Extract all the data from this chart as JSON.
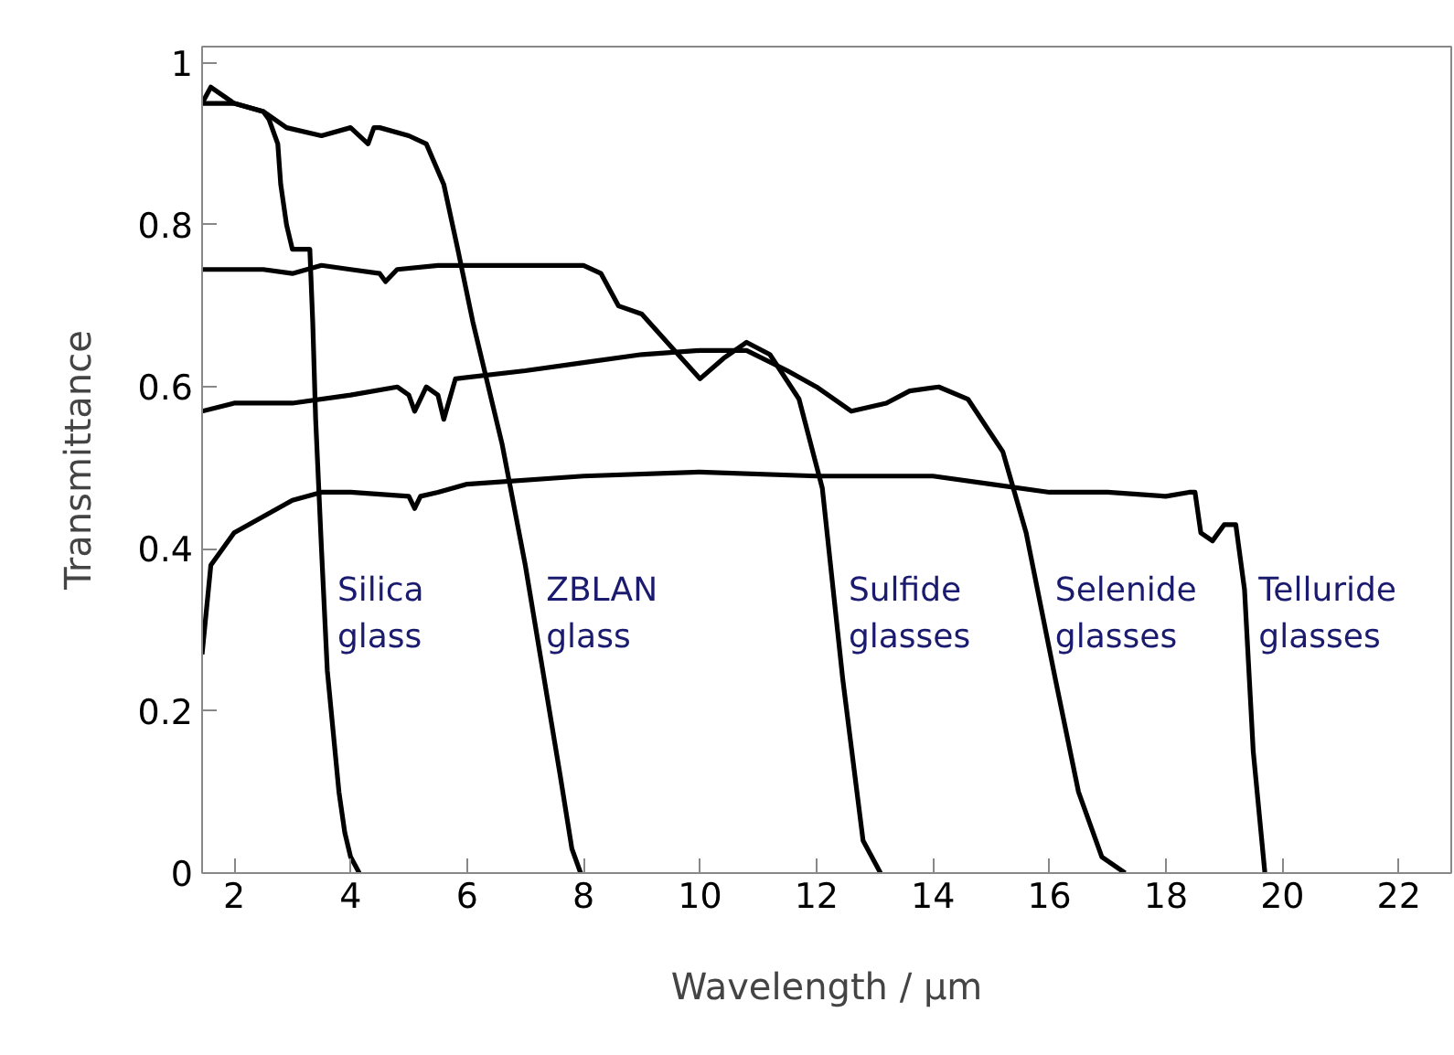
{
  "chart_data": {
    "type": "line",
    "xlabel": "Wavelength / µm",
    "ylabel": "Transmittance",
    "xlim": [
      1.45,
      22.9
    ],
    "ylim": [
      0,
      1.02
    ],
    "xticks": [
      2,
      4,
      6,
      8,
      10,
      12,
      14,
      16,
      18,
      20,
      22
    ],
    "yticks": [
      0,
      0.2,
      0.4,
      0.6,
      0.8,
      1
    ],
    "grid": false,
    "legend": false,
    "marker": "none",
    "line_style": "solid",
    "series": [
      {
        "name": "Silica\nglass",
        "color": "#000000",
        "x": [
          1.45,
          1.6,
          2.0,
          2.5,
          2.6,
          2.75,
          2.8,
          2.9,
          3.0,
          3.3,
          3.35,
          3.4,
          3.5,
          3.6,
          3.8,
          3.9,
          4.0,
          4.15
        ],
        "values": [
          0.95,
          0.97,
          0.95,
          0.94,
          0.93,
          0.9,
          0.85,
          0.8,
          0.77,
          0.77,
          0.68,
          0.56,
          0.4,
          0.25,
          0.1,
          0.05,
          0.02,
          0.0
        ]
      },
      {
        "name": "ZBLAN\nglass",
        "color": "#000000",
        "x": [
          1.45,
          2.0,
          2.5,
          2.9,
          3.5,
          4.0,
          4.3,
          4.4,
          4.5,
          5.0,
          5.3,
          5.6,
          5.84,
          6.1,
          6.6,
          7.0,
          7.3,
          7.6,
          7.8,
          7.95
        ],
        "values": [
          0.95,
          0.95,
          0.94,
          0.92,
          0.91,
          0.92,
          0.9,
          0.92,
          0.92,
          0.91,
          0.9,
          0.85,
          0.77,
          0.68,
          0.53,
          0.38,
          0.25,
          0.12,
          0.03,
          0.0
        ]
      },
      {
        "name": "Sulfide\nglasses",
        "color": "#000000",
        "x": [
          1.45,
          2.5,
          3.0,
          3.5,
          4.0,
          4.5,
          4.6,
          4.8,
          5.5,
          6.0,
          7.0,
          8.0,
          8.3,
          8.6,
          9.0,
          9.5,
          10.0,
          10.4,
          10.8,
          11.2,
          11.7,
          12.1,
          12.45,
          12.8,
          13.1
        ],
        "values": [
          0.745,
          0.745,
          0.74,
          0.75,
          0.745,
          0.74,
          0.73,
          0.745,
          0.75,
          0.75,
          0.75,
          0.75,
          0.74,
          0.7,
          0.69,
          0.65,
          0.61,
          0.635,
          0.655,
          0.64,
          0.585,
          0.475,
          0.24,
          0.04,
          0.0
        ]
      },
      {
        "name": "Selenide\nglasses",
        "color": "#000000",
        "x": [
          1.45,
          2.0,
          3.0,
          4.0,
          4.8,
          5.0,
          5.1,
          5.3,
          5.5,
          5.6,
          5.8,
          7.0,
          8.0,
          9.0,
          10.0,
          10.8,
          11.5,
          12.0,
          12.6,
          13.2,
          13.6,
          14.1,
          14.6,
          15.2,
          15.6,
          16.1,
          16.5,
          16.9,
          17.3
        ],
        "values": [
          0.57,
          0.58,
          0.58,
          0.59,
          0.6,
          0.59,
          0.57,
          0.6,
          0.59,
          0.56,
          0.61,
          0.62,
          0.63,
          0.64,
          0.645,
          0.645,
          0.62,
          0.6,
          0.57,
          0.58,
          0.595,
          0.6,
          0.585,
          0.52,
          0.42,
          0.24,
          0.1,
          0.02,
          0.0
        ]
      },
      {
        "name": "Telluride\nglasses",
        "color": "#000000",
        "x": [
          1.45,
          1.6,
          2.0,
          2.5,
          3.0,
          3.5,
          4.0,
          5.0,
          5.1,
          5.2,
          5.5,
          6.0,
          8.0,
          10.0,
          12.0,
          14.0,
          15.0,
          16.0,
          17.0,
          18.0,
          18.4,
          18.5,
          18.6,
          18.8,
          19.0,
          19.2,
          19.35,
          19.5,
          19.7
        ],
        "values": [
          0.27,
          0.38,
          0.42,
          0.44,
          0.46,
          0.47,
          0.47,
          0.465,
          0.45,
          0.465,
          0.47,
          0.48,
          0.49,
          0.495,
          0.49,
          0.49,
          0.48,
          0.47,
          0.47,
          0.465,
          0.47,
          0.47,
          0.42,
          0.41,
          0.43,
          0.43,
          0.35,
          0.15,
          0.0
        ]
      }
    ]
  }
}
